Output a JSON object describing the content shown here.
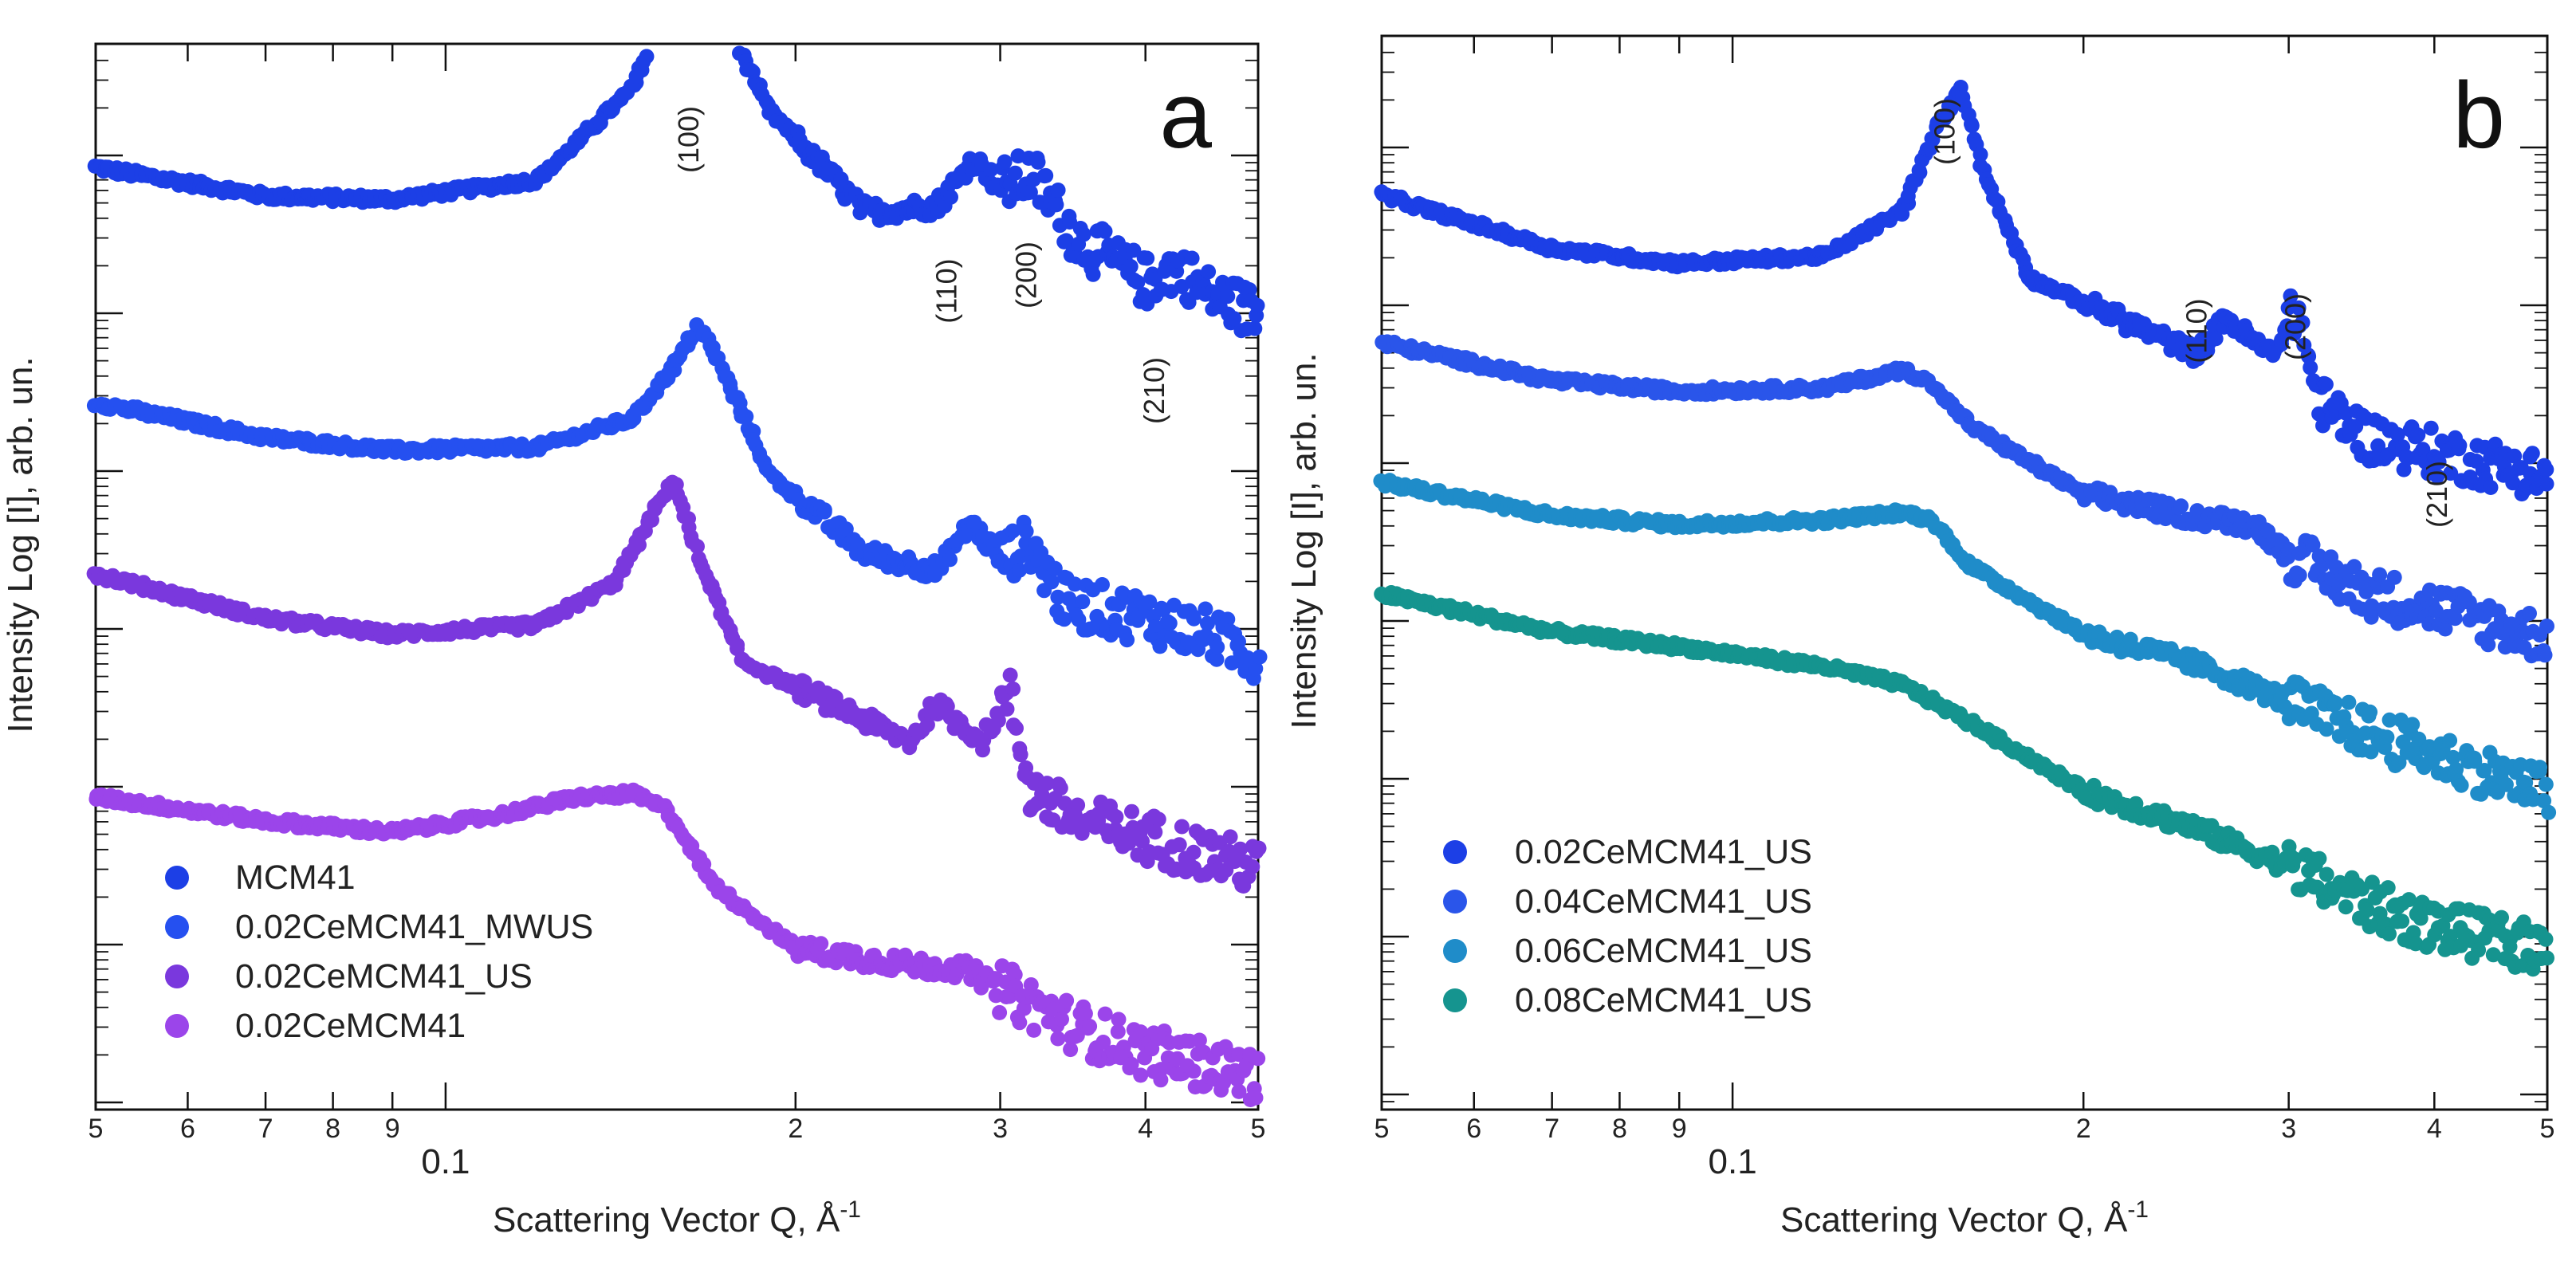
{
  "chart_data": [
    {
      "panel": "a",
      "type": "scatter",
      "xscale": "log",
      "yscale": "log",
      "xlim": [
        0.05,
        0.5
      ],
      "xlabel": "Scattering Vector Q, Å",
      "xlabel_sup": "-1",
      "ylabel": "Intensity Log [I], arb. un.",
      "x_tick_labels": [
        {
          "x": 0.05,
          "label": "5"
        },
        {
          "x": 0.06,
          "label": "6"
        },
        {
          "x": 0.07,
          "label": "7"
        },
        {
          "x": 0.08,
          "label": "8"
        },
        {
          "x": 0.09,
          "label": "9"
        },
        {
          "x": 0.1,
          "label": "0.1"
        },
        {
          "x": 0.2,
          "label": "2"
        },
        {
          "x": 0.3,
          "label": "3"
        },
        {
          "x": 0.4,
          "label": "4"
        },
        {
          "x": 0.5,
          "label": "5"
        }
      ],
      "peak_labels": [
        {
          "label": "(100)",
          "q": 0.165
        },
        {
          "label": "(110)",
          "q": 0.275
        },
        {
          "label": "(200)",
          "q": 0.322
        },
        {
          "label": "(210)",
          "q": 0.415
        }
      ],
      "series": [
        {
          "name": "MCM41",
          "color": "#1c3fe6",
          "points": [
            [
              0.05,
              0.0
            ],
            [
              0.07,
              -0.18
            ],
            [
              0.09,
              -0.2
            ],
            [
              0.12,
              -0.08
            ],
            [
              0.145,
              0.5
            ],
            [
              0.158,
              1.15
            ],
            [
              0.164,
              1.3
            ],
            [
              0.172,
              1.0
            ],
            [
              0.19,
              0.35
            ],
            [
              0.23,
              -0.28
            ],
            [
              0.265,
              -0.24
            ],
            [
              0.285,
              0.05
            ],
            [
              0.3,
              -0.12
            ],
            [
              0.32,
              -0.05
            ],
            [
              0.35,
              -0.45
            ],
            [
              0.4,
              -0.72
            ],
            [
              0.425,
              -0.62
            ],
            [
              0.45,
              -0.78
            ],
            [
              0.5,
              -0.92
            ]
          ]
        },
        {
          "name": "0.02CeMCM41_MWUS",
          "color": "#2550f0",
          "points": [
            [
              0.05,
              0.0
            ],
            [
              0.07,
              -0.22
            ],
            [
              0.09,
              -0.3
            ],
            [
              0.12,
              -0.28
            ],
            [
              0.145,
              -0.1
            ],
            [
              0.158,
              0.25
            ],
            [
              0.165,
              0.48
            ],
            [
              0.172,
              0.25
            ],
            [
              0.19,
              -0.45
            ],
            [
              0.23,
              -0.95
            ],
            [
              0.265,
              -1.05
            ],
            [
              0.283,
              -0.75
            ],
            [
              0.3,
              -0.98
            ],
            [
              0.318,
              -0.88
            ],
            [
              0.34,
              -1.25
            ],
            [
              0.4,
              -1.35
            ],
            [
              0.45,
              -1.45
            ],
            [
              0.5,
              -1.6
            ]
          ]
        },
        {
          "name": "0.02CeMCM41_US",
          "color": "#7a38dd",
          "points": [
            [
              0.05,
              0.0
            ],
            [
              0.07,
              -0.28
            ],
            [
              0.09,
              -0.38
            ],
            [
              0.12,
              -0.32
            ],
            [
              0.14,
              -0.05
            ],
            [
              0.15,
              0.35
            ],
            [
              0.157,
              0.6
            ],
            [
              0.165,
              0.1
            ],
            [
              0.18,
              -0.55
            ],
            [
              0.22,
              -0.85
            ],
            [
              0.25,
              -1.05
            ],
            [
              0.265,
              -0.82
            ],
            [
              0.275,
              -0.92
            ],
            [
              0.29,
              -1.05
            ],
            [
              0.305,
              -0.75
            ],
            [
              0.318,
              -1.35
            ],
            [
              0.35,
              -1.55
            ],
            [
              0.4,
              -1.65
            ],
            [
              0.5,
              -1.85
            ]
          ]
        },
        {
          "name": "0.02CeMCM41",
          "color": "#9b45ea",
          "points": [
            [
              0.05,
              0.0
            ],
            [
              0.07,
              -0.15
            ],
            [
              0.09,
              -0.22
            ],
            [
              0.11,
              -0.12
            ],
            [
              0.13,
              0.0
            ],
            [
              0.145,
              0.02
            ],
            [
              0.155,
              -0.08
            ],
            [
              0.17,
              -0.55
            ],
            [
              0.2,
              -0.95
            ],
            [
              0.25,
              -1.05
            ],
            [
              0.28,
              -1.08
            ],
            [
              0.3,
              -1.2
            ],
            [
              0.35,
              -1.45
            ],
            [
              0.4,
              -1.6
            ],
            [
              0.5,
              -1.75
            ]
          ]
        }
      ]
    },
    {
      "panel": "b",
      "type": "scatter",
      "xscale": "log",
      "yscale": "log",
      "xlim": [
        0.05,
        0.5
      ],
      "xlabel": "Scattering Vector Q, Å",
      "xlabel_sup": "-1",
      "ylabel": "Intensity Log [I], arb. un.",
      "x_tick_labels": [
        {
          "x": 0.05,
          "label": "5"
        },
        {
          "x": 0.06,
          "label": "6"
        },
        {
          "x": 0.07,
          "label": "7"
        },
        {
          "x": 0.08,
          "label": "8"
        },
        {
          "x": 0.09,
          "label": "9"
        },
        {
          "x": 0.1,
          "label": "0.1"
        },
        {
          "x": 0.2,
          "label": "2"
        },
        {
          "x": 0.3,
          "label": "3"
        },
        {
          "x": 0.4,
          "label": "4"
        },
        {
          "x": 0.5,
          "label": "5"
        }
      ],
      "peak_labels": [
        {
          "label": "(100)",
          "q": 0.155
        },
        {
          "label": "(110)",
          "q": 0.255
        },
        {
          "label": "(200)",
          "q": 0.31
        },
        {
          "label": "(210)",
          "q": 0.41
        }
      ],
      "series": [
        {
          "name": "0.02CeMCM41_US",
          "color": "#1c3fe6",
          "points": [
            [
              0.05,
              0.0
            ],
            [
              0.07,
              -0.35
            ],
            [
              0.09,
              -0.45
            ],
            [
              0.12,
              -0.4
            ],
            [
              0.14,
              -0.1
            ],
            [
              0.15,
              0.45
            ],
            [
              0.157,
              0.72
            ],
            [
              0.165,
              0.1
            ],
            [
              0.18,
              -0.55
            ],
            [
              0.22,
              -0.85
            ],
            [
              0.25,
              -1.05
            ],
            [
              0.265,
              -0.8
            ],
            [
              0.275,
              -0.92
            ],
            [
              0.29,
              -1.05
            ],
            [
              0.305,
              -0.75
            ],
            [
              0.318,
              -1.35
            ],
            [
              0.35,
              -1.6
            ],
            [
              0.4,
              -1.7
            ],
            [
              0.5,
              -1.85
            ]
          ]
        },
        {
          "name": "0.04CeMCM41_US",
          "color": "#2a55ea",
          "points": [
            [
              0.05,
              0.0
            ],
            [
              0.07,
              -0.25
            ],
            [
              0.09,
              -0.32
            ],
            [
              0.12,
              -0.3
            ],
            [
              0.14,
              -0.18
            ],
            [
              0.147,
              -0.25
            ],
            [
              0.16,
              -0.55
            ],
            [
              0.2,
              -1.0
            ],
            [
              0.25,
              -1.15
            ],
            [
              0.28,
              -1.2
            ],
            [
              0.3,
              -1.4
            ],
            [
              0.35,
              -1.65
            ],
            [
              0.4,
              -1.75
            ],
            [
              0.5,
              -1.95
            ]
          ]
        },
        {
          "name": "0.06CeMCM41_US",
          "color": "#1f8cc9",
          "points": [
            [
              0.05,
              0.0
            ],
            [
              0.07,
              -0.22
            ],
            [
              0.09,
              -0.28
            ],
            [
              0.12,
              -0.25
            ],
            [
              0.14,
              -0.2
            ],
            [
              0.148,
              -0.25
            ],
            [
              0.16,
              -0.55
            ],
            [
              0.2,
              -1.0
            ],
            [
              0.25,
              -1.2
            ],
            [
              0.3,
              -1.45
            ],
            [
              0.35,
              -1.65
            ],
            [
              0.4,
              -1.8
            ],
            [
              0.5,
              -2.05
            ]
          ]
        },
        {
          "name": "0.08CeMCM41_US",
          "color": "#15948f",
          "points": [
            [
              0.05,
              0.0
            ],
            [
              0.07,
              -0.25
            ],
            [
              0.09,
              -0.35
            ],
            [
              0.12,
              -0.48
            ],
            [
              0.14,
              -0.6
            ],
            [
              0.16,
              -0.85
            ],
            [
              0.2,
              -1.3
            ],
            [
              0.25,
              -1.55
            ],
            [
              0.3,
              -1.8
            ],
            [
              0.35,
              -2.05
            ],
            [
              0.4,
              -2.2
            ],
            [
              0.5,
              -2.35
            ]
          ]
        }
      ]
    }
  ]
}
